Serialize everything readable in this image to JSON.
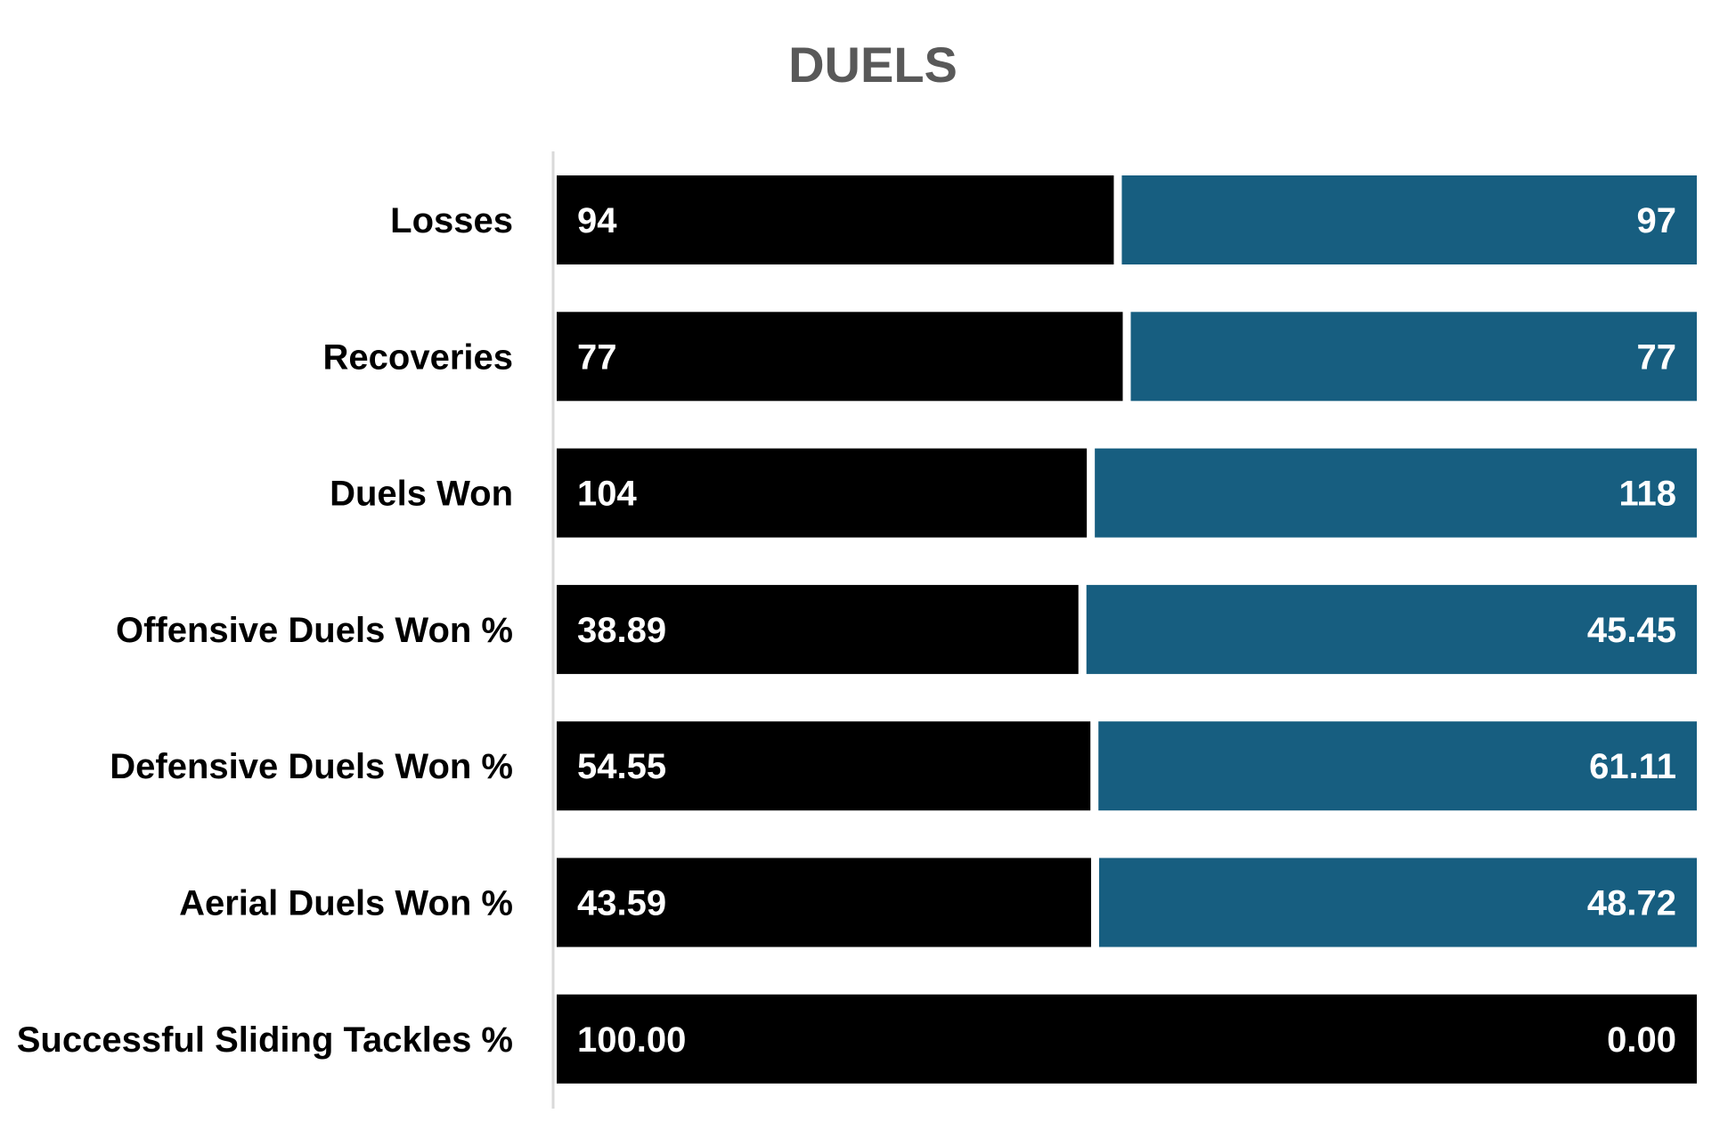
{
  "chart_data": {
    "type": "bar",
    "orientation": "horizontal",
    "stacked": "normalized",
    "title": "DUELS",
    "categories": [
      "Losses",
      "Recoveries",
      "Duels Won",
      "Offensive Duels Won %",
      "Defensive Duels Won %",
      "Aerial Duels Won %",
      "Successful Sliding Tackles %"
    ],
    "series": [
      {
        "color": "#000000",
        "values": [
          94,
          77,
          104,
          38.89,
          54.55,
          43.59,
          100.0
        ],
        "labels": [
          "94",
          "77",
          "104",
          "38.89",
          "54.55",
          "43.59",
          "100.00"
        ]
      },
      {
        "color": "#175E80",
        "values": [
          97,
          77,
          118,
          45.45,
          61.11,
          48.72,
          0.0
        ],
        "labels": [
          "97",
          "77",
          "118",
          "45.45",
          "61.11",
          "48.72",
          "0.00"
        ]
      }
    ],
    "xlim": [
      0,
      1
    ],
    "grid": false,
    "legend": "none"
  }
}
